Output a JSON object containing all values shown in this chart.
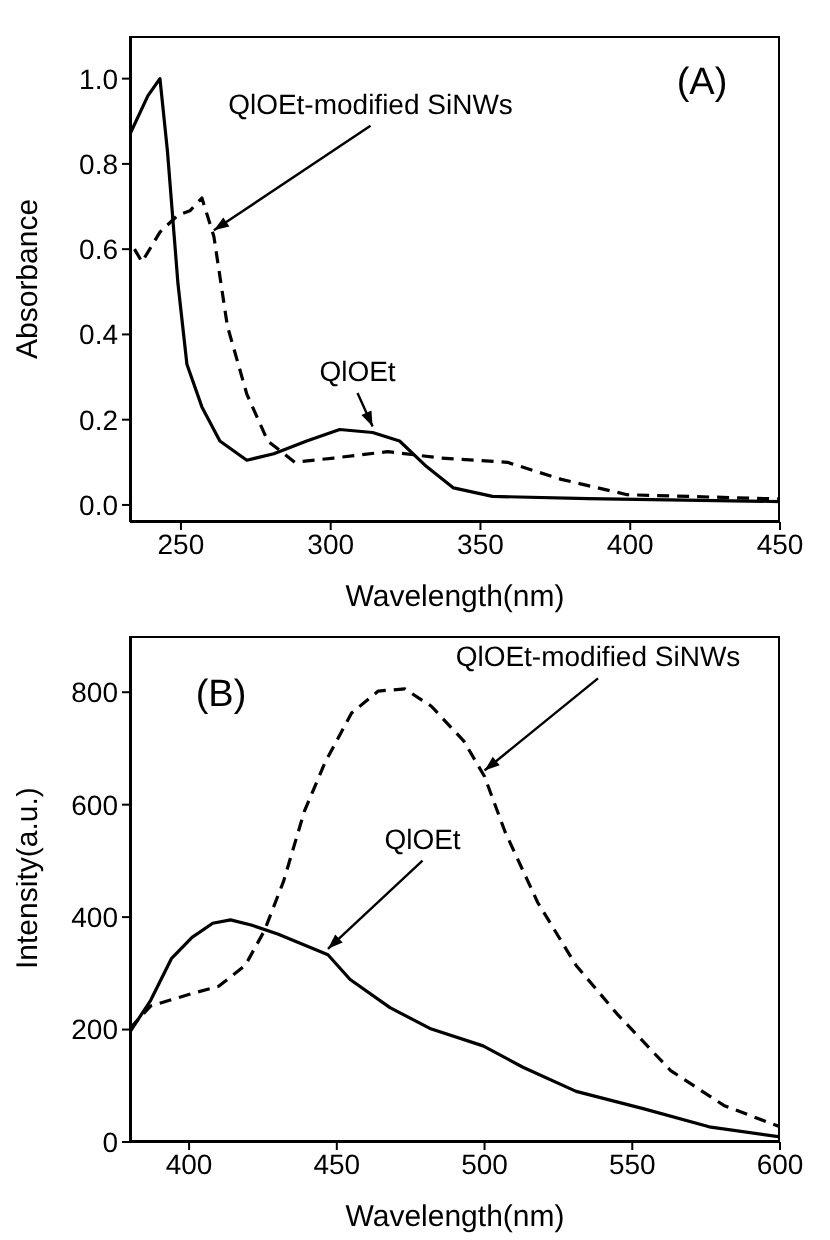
{
  "chart_data": [
    {
      "type": "line",
      "title": "(A)",
      "xlabel": "Wavelength(nm)",
      "ylabel": "Absorbance",
      "xlim": [
        233,
        450
      ],
      "ylim": [
        -0.04,
        1.1
      ],
      "xticks": [
        250,
        300,
        350,
        400,
        450
      ],
      "yticks": [
        {
          "value": 0,
          "label": "0.0"
        },
        {
          "value": 0.2,
          "label": "0.2"
        },
        {
          "value": 0.4,
          "label": "0.4"
        },
        {
          "value": 0.6,
          "label": "0.6"
        },
        {
          "value": 0.8,
          "label": "0.8"
        },
        {
          "value": 1,
          "label": "1.0"
        }
      ],
      "grid": false,
      "legend": false,
      "marker": "none",
      "series": [
        {
          "name": "QlOEt-modified SiNWs",
          "color": "#000000",
          "line_style": "dashed",
          "x": [
            234.5,
            237,
            243,
            249,
            253,
            257,
            261,
            265.5,
            272,
            279,
            288,
            301,
            319,
            337,
            359,
            377,
            399,
            450
          ],
          "values": [
            0.6,
            0.57,
            0.64,
            0.68,
            0.69,
            0.72,
            0.63,
            0.42,
            0.26,
            0.15,
            0.1,
            0.11,
            0.125,
            0.11,
            0.1,
            0.06,
            0.024,
            0.014
          ]
        },
        {
          "name": "QlOEt",
          "color": "#000000",
          "line_style": "solid",
          "x": [
            233,
            239,
            243,
            245.5,
            249,
            252,
            257,
            263,
            272,
            281,
            292,
            303,
            314,
            323,
            332,
            341,
            354,
            386,
            450
          ],
          "values": [
            0.87,
            0.96,
            1.0,
            0.83,
            0.52,
            0.33,
            0.23,
            0.15,
            0.105,
            0.12,
            0.15,
            0.177,
            0.17,
            0.15,
            0.09,
            0.04,
            0.02,
            0.015,
            0.008
          ]
        }
      ]
    },
    {
      "type": "line",
      "title": "(B)",
      "xlabel": "Wavelength(nm)",
      "ylabel": "Intensity(a.u.)",
      "xlim": [
        380,
        600
      ],
      "ylim": [
        0,
        900
      ],
      "xticks": [
        400,
        450,
        500,
        550,
        600
      ],
      "yticks": [
        0,
        200,
        400,
        600,
        800
      ],
      "grid": false,
      "legend": false,
      "marker": "none",
      "series": [
        {
          "name": "QlOEt-modified SiNWs",
          "color": "#000000",
          "line_style": "dashed",
          "x": [
            380,
            387,
            401,
            410,
            419,
            425.5,
            432,
            439,
            446,
            455,
            464,
            473,
            482,
            493,
            500,
            507,
            518,
            531,
            545,
            563,
            581,
            600
          ],
          "values": [
            202,
            242,
            264,
            277,
            314,
            376,
            464,
            588,
            675,
            763,
            802,
            806,
            775,
            713,
            650,
            551,
            426,
            314,
            227,
            127,
            65,
            27
          ]
        },
        {
          "name": "QlOEt",
          "color": "#000000",
          "line_style": "solid",
          "x": [
            380,
            387,
            394,
            401,
            408,
            414,
            421,
            430,
            447,
            454.5,
            468,
            481.5,
            499.5,
            513,
            531,
            554,
            576,
            600
          ],
          "values": [
            196,
            252,
            326,
            364,
            389,
            395,
            386,
            370,
            333,
            289,
            239,
            202,
            171,
            133,
            90,
            59,
            27,
            9
          ]
        }
      ]
    }
  ]
}
